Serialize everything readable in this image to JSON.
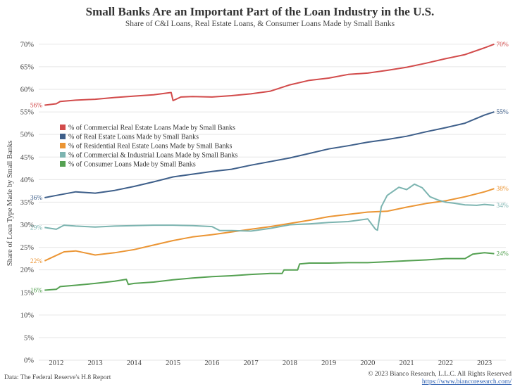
{
  "header": {
    "title": "Small Banks Are an Important Part of the Loan Industry in the U.S.",
    "subtitle": "Share of C&I Loans, Real Estate Loans, & Consumer Loans Made by Small Banks"
  },
  "footer": {
    "source": "Data: The Federal Reserve's H.8 Report",
    "copyright": "© 2023 Bianco Research, L.L.C. All Rights Reserved",
    "link": "https://www.biancoresearch.com/"
  },
  "chart_data": {
    "type": "line",
    "title": "Small Banks Are an Important Part of the Loan Industry in the U.S.",
    "subtitle": "Share of C&I Loans, Real Estate Loans, & Consumer Loans Made by Small Banks",
    "ylabel": "Share of Loan Type Made by Small Banks",
    "xlabel": "",
    "ylim": [
      0,
      72
    ],
    "xlim": [
      2011.55,
      2023.55
    ],
    "yticks": [
      0,
      5,
      10,
      15,
      20,
      25,
      30,
      35,
      40,
      45,
      50,
      55,
      60,
      65,
      70
    ],
    "ytick_labels": [
      "0%",
      "5%",
      "10%",
      "15%",
      "20%",
      "25%",
      "30%",
      "35%",
      "40%",
      "45%",
      "50%",
      "55%",
      "60%",
      "65%",
      "70%"
    ],
    "xticks": [
      2012,
      2013,
      2014,
      2015,
      2016,
      2017,
      2018,
      2019,
      2020,
      2021,
      2022,
      2023
    ],
    "xtick_labels": [
      "2012",
      "2013",
      "2014",
      "2015",
      "2016",
      "2017",
      "2018",
      "2019",
      "2020",
      "2021",
      "2022",
      "2023"
    ],
    "grid": true,
    "legend_position": "left-middle",
    "series": [
      {
        "name": "% of Commercial Real Estate Loans Made by Small Banks",
        "color": "#d24b4b",
        "start_label": "56%",
        "end_label": "70%",
        "x": [
          2011.7,
          2012.0,
          2012.1,
          2012.5,
          2013.0,
          2013.5,
          2014.0,
          2014.5,
          2014.95,
          2015.0,
          2015.2,
          2015.5,
          2016.0,
          2016.5,
          2017.0,
          2017.5,
          2018.0,
          2018.5,
          2019.0,
          2019.5,
          2020.0,
          2020.5,
          2021.0,
          2021.5,
          2022.0,
          2022.5,
          2023.0,
          2023.25
        ],
        "y": [
          56.5,
          56.8,
          57.3,
          57.6,
          57.8,
          58.2,
          58.5,
          58.8,
          59.3,
          57.5,
          58.3,
          58.4,
          58.3,
          58.6,
          59.0,
          59.6,
          61.0,
          62.0,
          62.5,
          63.3,
          63.6,
          64.2,
          64.9,
          65.8,
          66.8,
          67.7,
          69.2,
          70.0
        ]
      },
      {
        "name": "% of Real Estate Loans Made by Small Banks",
        "color": "#3e5f8a",
        "start_label": "36%",
        "end_label": "55%",
        "x": [
          2011.7,
          2012.0,
          2012.5,
          2013.0,
          2013.5,
          2014.0,
          2014.5,
          2015.0,
          2015.5,
          2016.0,
          2016.5,
          2017.0,
          2017.5,
          2018.0,
          2018.5,
          2019.0,
          2019.5,
          2020.0,
          2020.5,
          2021.0,
          2021.5,
          2022.0,
          2022.5,
          2023.0,
          2023.25
        ],
        "y": [
          36.0,
          36.5,
          37.3,
          37.0,
          37.6,
          38.5,
          39.5,
          40.6,
          41.2,
          41.8,
          42.3,
          43.2,
          44.0,
          44.8,
          45.8,
          46.8,
          47.5,
          48.3,
          48.9,
          49.6,
          50.6,
          51.5,
          52.5,
          54.3,
          55.0
        ]
      },
      {
        "name": "% of Residential Real Estate Loans Made by Small Banks",
        "color": "#eb9534",
        "start_label": "22%",
        "end_label": "38%",
        "x": [
          2011.7,
          2011.9,
          2012.2,
          2012.5,
          2013.0,
          2013.5,
          2014.0,
          2014.5,
          2015.0,
          2015.5,
          2016.0,
          2016.5,
          2017.0,
          2017.5,
          2018.0,
          2018.5,
          2019.0,
          2019.5,
          2020.0,
          2020.5,
          2021.0,
          2021.5,
          2022.0,
          2022.5,
          2023.0,
          2023.25
        ],
        "y": [
          22.0,
          22.8,
          24.0,
          24.2,
          23.3,
          23.8,
          24.5,
          25.5,
          26.5,
          27.3,
          27.8,
          28.4,
          29.0,
          29.6,
          30.3,
          31.0,
          31.8,
          32.3,
          32.8,
          33.0,
          33.9,
          34.7,
          35.3,
          36.2,
          37.3,
          38.0
        ]
      },
      {
        "name": "% of Commercial & Industrial Loans Made by Small Banks",
        "color": "#7cb4b0",
        "start_label": "29%",
        "end_label": "34%",
        "x": [
          2011.7,
          2012.0,
          2012.2,
          2012.5,
          2013.0,
          2013.5,
          2014.0,
          2014.5,
          2015.0,
          2015.5,
          2016.0,
          2016.2,
          2016.5,
          2017.0,
          2017.5,
          2018.0,
          2018.5,
          2019.0,
          2019.5,
          2020.0,
          2020.2,
          2020.25,
          2020.35,
          2020.5,
          2020.8,
          2021.0,
          2021.2,
          2021.4,
          2021.6,
          2021.8,
          2022.0,
          2022.2,
          2022.5,
          2022.8,
          2023.0,
          2023.25
        ],
        "y": [
          29.4,
          29.0,
          29.9,
          29.7,
          29.5,
          29.7,
          29.8,
          29.9,
          29.9,
          29.8,
          29.6,
          28.7,
          28.7,
          28.6,
          29.2,
          30.0,
          30.2,
          30.5,
          30.7,
          31.3,
          29.0,
          28.8,
          34.0,
          36.5,
          38.3,
          37.8,
          39.0,
          38.2,
          36.2,
          35.5,
          35.0,
          34.8,
          34.4,
          34.3,
          34.5,
          34.3
        ]
      },
      {
        "name": "% of Consumer Loans Made by Small Banks",
        "color": "#55a152",
        "start_label": "16%",
        "end_label": "24%",
        "x": [
          2011.7,
          2012.0,
          2012.1,
          2012.5,
          2013.0,
          2013.5,
          2013.8,
          2013.85,
          2014.0,
          2014.5,
          2015.0,
          2015.5,
          2016.0,
          2016.5,
          2017.0,
          2017.5,
          2017.8,
          2017.85,
          2018.2,
          2018.25,
          2018.5,
          2019.0,
          2019.5,
          2020.0,
          2020.5,
          2021.0,
          2021.5,
          2022.0,
          2022.5,
          2022.7,
          2023.0,
          2023.25
        ],
        "y": [
          15.5,
          15.7,
          16.3,
          16.6,
          17.0,
          17.5,
          17.9,
          16.8,
          17.0,
          17.3,
          17.8,
          18.2,
          18.5,
          18.7,
          19.0,
          19.2,
          19.2,
          20.0,
          20.0,
          21.3,
          21.5,
          21.5,
          21.6,
          21.6,
          21.8,
          22.0,
          22.2,
          22.5,
          22.5,
          23.5,
          23.8,
          23.6
        ]
      }
    ]
  }
}
